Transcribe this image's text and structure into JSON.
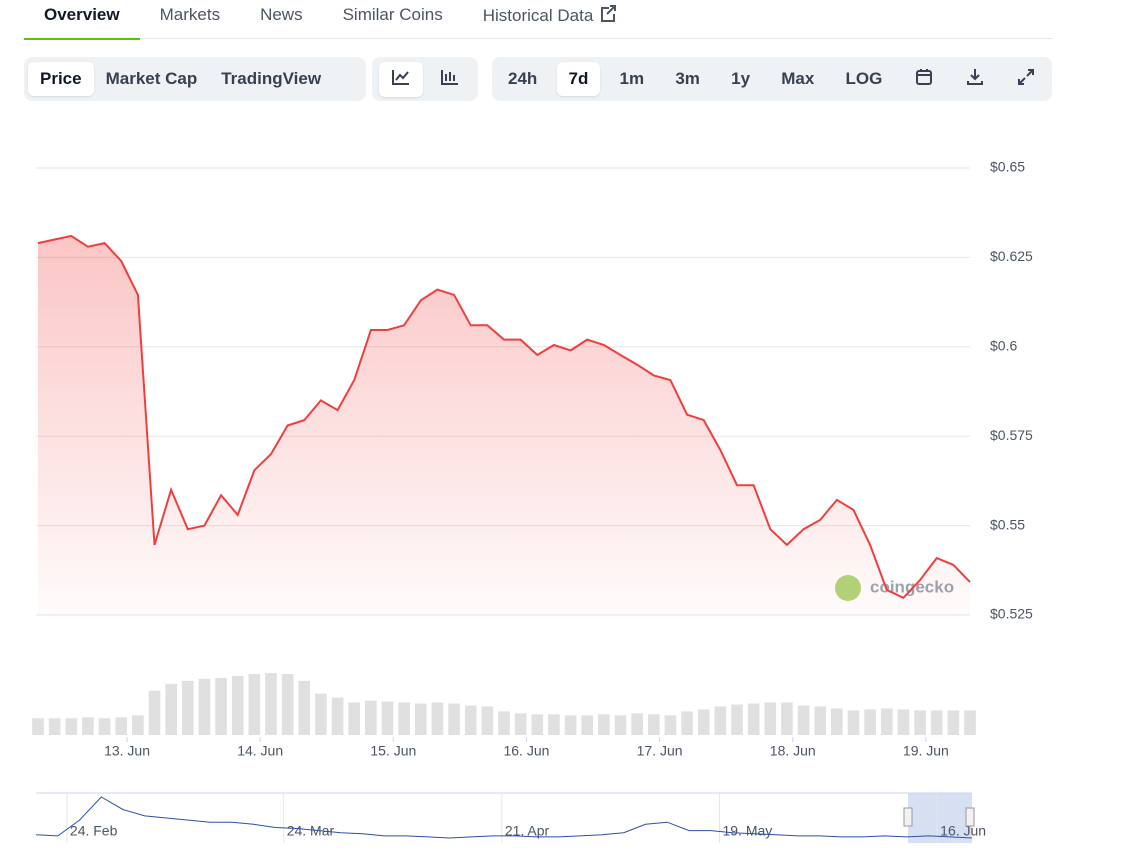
{
  "tabs": [
    "Overview",
    "Markets",
    "News",
    "Similar Coins",
    "Historical Data"
  ],
  "chart_types": [
    "Price",
    "Market Cap",
    "TradingView"
  ],
  "ranges": [
    "24h",
    "7d",
    "1m",
    "3m",
    "1y",
    "Max",
    "LOG"
  ],
  "watermark": "coingecko",
  "chart_data": {
    "type": "line",
    "series": [
      {
        "color": "#f03e3e",
        "values": [
          0.629,
          0.63,
          0.631,
          0.628,
          0.629,
          0.624,
          0.6145,
          0.5446,
          0.56,
          0.549,
          0.55,
          0.5585,
          0.553,
          0.5655,
          0.57,
          0.578,
          0.5795,
          0.585,
          0.5823,
          0.5907,
          0.6047,
          0.6047,
          0.606,
          0.613,
          0.616,
          0.6145,
          0.606,
          0.606,
          0.602,
          0.602,
          0.5977,
          0.6005,
          0.599,
          0.602,
          0.6005,
          0.5977,
          0.595,
          0.592,
          0.5907,
          0.581,
          0.5795,
          0.5711,
          0.5613,
          0.5613,
          0.549,
          0.5446,
          0.549,
          0.5516,
          0.5572,
          0.5544,
          0.5446,
          0.532,
          0.5298,
          0.5348,
          0.5409,
          0.539,
          0.5342
        ]
      }
    ],
    "volume": [
      17,
      17,
      17,
      18,
      17,
      18,
      20,
      45,
      52,
      55,
      57,
      58,
      60,
      62,
      63,
      62,
      55,
      42,
      38,
      33,
      35,
      34,
      33,
      32,
      33,
      32,
      30,
      29,
      24,
      22,
      21,
      21,
      20,
      20,
      21,
      20,
      22,
      21,
      20,
      24,
      26,
      29,
      31,
      32,
      33,
      33,
      30,
      29,
      27,
      25,
      26,
      27,
      26,
      25,
      25,
      25,
      25
    ],
    "ylim": [
      0.525,
      0.65
    ],
    "yticks": [
      {
        "value": 0.65,
        "label": "$0.65"
      },
      {
        "value": 0.625,
        "label": "$0.625"
      },
      {
        "value": 0.6,
        "label": "$0.6"
      },
      {
        "value": 0.575,
        "label": "$0.575"
      },
      {
        "value": 0.55,
        "label": "$0.55"
      },
      {
        "value": 0.525,
        "label": "$0.525"
      }
    ],
    "xlim": [
      0,
      56
    ],
    "xticks": [
      {
        "value": 5.35,
        "label": "13. Jun"
      },
      {
        "value": 13.35,
        "label": "14. Jun"
      },
      {
        "value": 21.35,
        "label": "15. Jun"
      },
      {
        "value": 29.35,
        "label": "16. Jun"
      },
      {
        "value": 37.35,
        "label": "17. Jun"
      },
      {
        "value": 45.35,
        "label": "18. Jun"
      },
      {
        "value": 53.35,
        "label": "19. Jun"
      }
    ],
    "grid": true,
    "navigator": {
      "color": "#2f4fa8",
      "values": [
        0.56,
        0.55,
        0.7,
        0.92,
        0.8,
        0.74,
        0.72,
        0.7,
        0.68,
        0.68,
        0.66,
        0.63,
        0.62,
        0.6,
        0.58,
        0.57,
        0.55,
        0.55,
        0.54,
        0.53,
        0.54,
        0.55,
        0.55,
        0.54,
        0.54,
        0.55,
        0.56,
        0.58,
        0.66,
        0.68,
        0.6,
        0.6,
        0.58,
        0.57,
        0.56,
        0.55,
        0.55,
        0.54,
        0.54,
        0.55,
        0.54,
        0.55,
        0.54,
        0.53
      ],
      "xlim": [
        0,
        43
      ],
      "xticks": [
        {
          "value": 1.42,
          "label": "24. Feb"
        },
        {
          "value": 11.38,
          "label": "24. Mar"
        },
        {
          "value": 21.4,
          "label": "21. Apr"
        },
        {
          "value": 31.4,
          "label": "19. May"
        },
        {
          "value": 41.4,
          "label": "16. Jun"
        }
      ]
    }
  }
}
